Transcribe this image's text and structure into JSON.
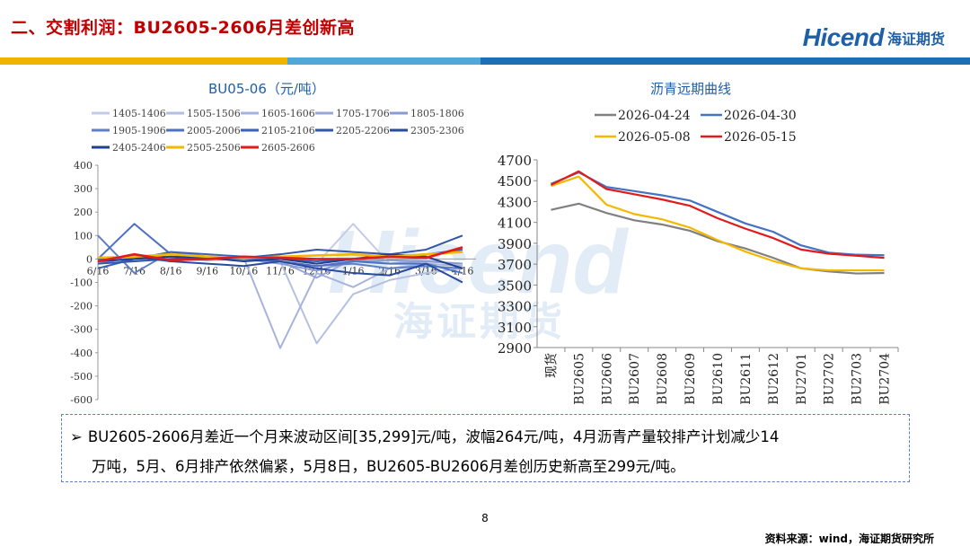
{
  "header": {
    "title": "二、交割利润：BU2605-2606月差创新高",
    "logo_en": "Hicend",
    "logo_cn": "海证期货"
  },
  "watermark": {
    "en": "Hicend",
    "cn": "海证期货"
  },
  "colors": {
    "title_red": "#c00000",
    "brand_blue": "#1f5fa8",
    "bar_gold": "#f0b400",
    "bar_blue": "#1a6fb5"
  },
  "chart_left": {
    "title": "BU05-06（元/吨）",
    "legend": [
      "1405-1406",
      "1505-1506",
      "1605-1606",
      "1705-1706",
      "1805-1806",
      "1905-1906",
      "2005-2006",
      "2105-2106",
      "2205-2206",
      "2305-2306",
      "2405-2406",
      "2505-2506",
      "2605-2606"
    ],
    "x_ticks": [
      "6/16",
      "7/16",
      "8/16",
      "9/16",
      "10/16",
      "11/16",
      "12/16",
      "1/16",
      "2/16",
      "3/16",
      "4/16"
    ],
    "y_ticks": [
      "400",
      "300",
      "200",
      "100",
      "0",
      "-100",
      "-200",
      "-300",
      "-400",
      "-500",
      "-600"
    ]
  },
  "chart_right": {
    "title": "沥青远期曲线",
    "y_ticks": [
      "4700",
      "4500",
      "4300",
      "4100",
      "3900",
      "3700",
      "3500",
      "3300",
      "3100",
      "2900"
    ]
  },
  "chart_data": [
    {
      "type": "line",
      "title": "BU05-06（元/吨）",
      "ylim": [
        -600,
        400
      ],
      "x": [
        "6/16",
        "7/16",
        "8/16",
        "9/16",
        "10/16",
        "11/16",
        "12/16",
        "1/16",
        "2/16",
        "3/16",
        "4/16"
      ],
      "series": [
        {
          "name": "1405-1406",
          "color": "#c5cbe6",
          "values": [
            0,
            -10,
            5,
            0,
            -5,
            10,
            -20,
            150,
            -20,
            0,
            -30
          ]
        },
        {
          "name": "1505-1506",
          "color": "#b5bfe2",
          "values": [
            0,
            5,
            0,
            -5,
            0,
            -10,
            -360,
            -150,
            -90,
            -60,
            -40
          ]
        },
        {
          "name": "1605-1606",
          "color": "#a7b3dd",
          "values": [
            0,
            0,
            -5,
            0,
            5,
            -380,
            -60,
            -120,
            -40,
            -20,
            -30
          ]
        },
        {
          "name": "1705-1706",
          "color": "#98a7d8",
          "values": [
            5,
            0,
            0,
            -5,
            0,
            -10,
            -80,
            0,
            -20,
            -10,
            -20
          ]
        },
        {
          "name": "1805-1806",
          "color": "#8a9bd3",
          "values": [
            -20,
            10,
            -10,
            5,
            0,
            -20,
            -50,
            -10,
            -5,
            -10,
            -20
          ]
        },
        {
          "name": "1905-1906",
          "color": "#5f7ec4",
          "values": [
            100,
            -60,
            30,
            10,
            0,
            -10,
            -30,
            -20,
            -40,
            -30,
            -40
          ]
        },
        {
          "name": "2005-2006",
          "color": "#4e72c0",
          "values": [
            0,
            150,
            20,
            0,
            5,
            -10,
            -30,
            -10,
            -20,
            -20,
            -60
          ]
        },
        {
          "name": "2105-2106",
          "color": "#3b62b8",
          "values": [
            -40,
            0,
            30,
            20,
            10,
            0,
            -10,
            0,
            10,
            20,
            40
          ]
        },
        {
          "name": "2205-2206",
          "color": "#3355aa",
          "values": [
            -20,
            -10,
            0,
            10,
            5,
            20,
            40,
            30,
            20,
            40,
            100
          ]
        },
        {
          "name": "2305-2306",
          "color": "#2a4a9e",
          "values": [
            0,
            10,
            -10,
            -20,
            -30,
            -10,
            -40,
            -60,
            -70,
            -20,
            -100
          ]
        },
        {
          "name": "2405-2406",
          "color": "#213f8f",
          "values": [
            -10,
            0,
            10,
            5,
            -10,
            0,
            -20,
            0,
            20,
            10,
            -40
          ]
        },
        {
          "name": "2505-2506",
          "color": "#f5b800",
          "values": [
            5,
            10,
            20,
            10,
            5,
            10,
            15,
            20,
            10,
            20,
            30
          ]
        },
        {
          "name": "2605-2606",
          "color": "#e11b1b",
          "values": [
            -10,
            20,
            -5,
            0,
            10,
            5,
            0,
            0,
            10,
            5,
            50
          ]
        }
      ]
    },
    {
      "type": "line",
      "title": "沥青远期曲线",
      "ylim": [
        2900,
        4700
      ],
      "categories": [
        "现货",
        "BU2605",
        "BU2606",
        "BU2607",
        "BU2608",
        "BU2609",
        "BU2610",
        "BU2611",
        "BU2612",
        "BU2701",
        "BU2702",
        "BU2703",
        "BU2704"
      ],
      "series": [
        {
          "name": "2026-04-24",
          "color": "#808080",
          "values": [
            4220,
            4280,
            4190,
            4120,
            4080,
            4020,
            3920,
            3850,
            3760,
            3660,
            3630,
            3610,
            3615
          ]
        },
        {
          "name": "2026-04-30",
          "color": "#4472c4",
          "values": [
            4470,
            4580,
            4440,
            4400,
            4360,
            4310,
            4200,
            4090,
            4010,
            3880,
            3810,
            3790,
            3785
          ]
        },
        {
          "name": "2026-05-08",
          "color": "#f5b800",
          "values": [
            4450,
            4540,
            4270,
            4180,
            4130,
            4050,
            3930,
            3820,
            3730,
            3660,
            3640,
            3640,
            3640
          ]
        },
        {
          "name": "2026-05-15",
          "color": "#e11b1b",
          "values": [
            4460,
            4590,
            4420,
            4370,
            4320,
            4260,
            4140,
            4040,
            3950,
            3840,
            3800,
            3780,
            3760
          ]
        }
      ]
    }
  ],
  "note": {
    "line1": "BU2605-2606月差近一个月来波动区间[35,299]元/吨，波幅264元/吨，4月沥青产量较排产计划减少14",
    "line2": "万吨，5月、6月排产依然偏紧，5月8日，BU2605-BU2606月差创历史新高至299元/吨。"
  },
  "footer": {
    "page": "8",
    "source": "资料来源：wind，海证期货研究所"
  }
}
